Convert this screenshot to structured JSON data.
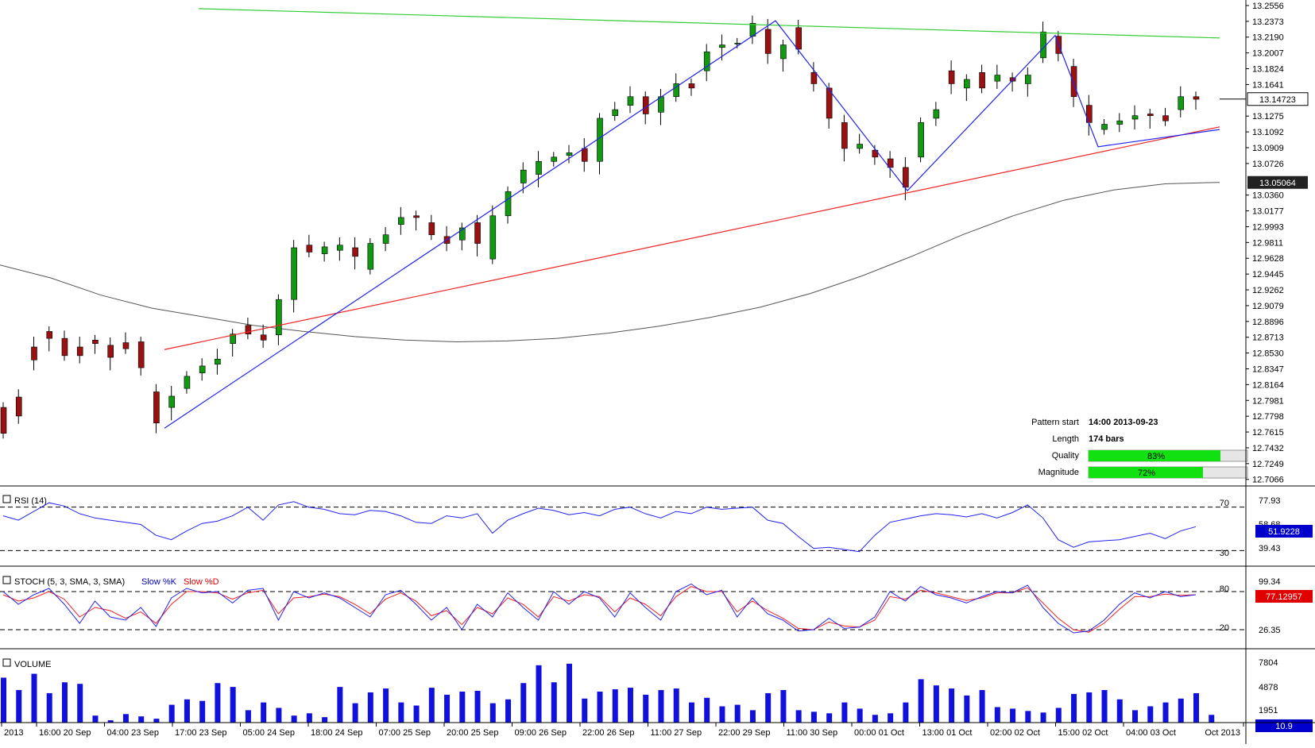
{
  "chart_data": {
    "type": "candlestick",
    "price_axis": {
      "ticks": [
        "13.2556",
        "13.2373",
        "13.2190",
        "13.2007",
        "13.1824",
        "13.1641",
        "13.1275",
        "13.1092",
        "13.0909",
        "13.0726",
        "13.0360",
        "13.0177",
        "12.9993",
        "12.9811",
        "12.9628",
        "12.9445",
        "12.9262",
        "12.9079",
        "12.8896",
        "12.8713",
        "12.8530",
        "12.8347",
        "12.8164",
        "12.7981",
        "12.7798",
        "12.7615",
        "12.7432",
        "12.7249",
        "12.7066"
      ],
      "range": [
        12.699,
        13.262
      ],
      "current_price_label": "13.14723",
      "ma_label": "13.05064"
    },
    "time_axis": {
      "labels": [
        "2013",
        "16:00 20 Sep",
        "04:00 23 Sep",
        "17:00 23 Sep",
        "05:00 24 Sep",
        "18:00 24 Sep",
        "07:00 25 Sep",
        "20:00 25 Sep",
        "09:00 26 Sep",
        "22:00 26 Sep",
        "11:00 27 Sep",
        "22:00 29 Sep",
        "11:00 30 Sep",
        "00:00 01 Oct",
        "13:00 01 Oct",
        "02:00 02 Oct",
        "15:00 02 Oct",
        "04:00 03 Oct",
        "Oct 2013"
      ]
    },
    "price_points": [
      [
        12.79,
        12.76
      ],
      [
        12.802,
        12.78
      ],
      [
        12.86,
        12.845
      ],
      [
        12.878,
        12.87
      ],
      [
        12.87,
        12.85
      ],
      [
        12.86,
        12.85
      ],
      [
        12.868,
        12.864
      ],
      [
        12.862,
        12.848
      ],
      [
        12.865,
        12.858
      ],
      [
        12.866,
        12.836
      ],
      [
        12.808,
        12.772
      ],
      [
        12.79,
        12.803
      ],
      [
        12.812,
        12.826
      ],
      [
        12.83,
        12.838
      ],
      [
        12.84,
        12.846
      ],
      [
        12.864,
        12.875
      ],
      [
        12.885,
        12.875
      ],
      [
        12.874,
        12.868
      ],
      [
        12.874,
        12.915
      ],
      [
        12.915,
        12.975
      ],
      [
        12.978,
        12.97
      ],
      [
        12.968,
        12.976
      ],
      [
        12.972,
        12.978
      ],
      [
        12.975,
        12.965
      ],
      [
        12.95,
        12.98
      ],
      [
        12.98,
        12.99
      ],
      [
        13.002,
        13.01
      ],
      [
        13.012,
        13.01
      ],
      [
        13.004,
        12.99
      ],
      [
        12.988,
        12.98
      ],
      [
        12.984,
        12.998
      ],
      [
        13.004,
        12.98
      ],
      [
        12.962,
        13.012
      ],
      [
        13.012,
        13.04
      ],
      [
        13.05,
        13.065
      ],
      [
        13.06,
        13.075
      ],
      [
        13.075,
        13.08
      ],
      [
        13.082,
        13.085
      ],
      [
        13.09,
        13.075
      ],
      [
        13.075,
        13.125
      ],
      [
        13.128,
        13.135
      ],
      [
        13.14,
        13.15
      ],
      [
        13.15,
        13.13
      ],
      [
        13.132,
        13.15
      ],
      [
        13.15,
        13.165
      ],
      [
        13.165,
        13.16
      ],
      [
        13.18,
        13.202
      ],
      [
        13.207,
        13.21
      ],
      [
        13.212,
        13.212
      ],
      [
        13.22,
        13.235
      ],
      [
        13.228,
        13.2
      ],
      [
        13.194,
        13.21
      ],
      [
        13.23,
        13.205
      ],
      [
        13.178,
        13.165
      ],
      [
        13.16,
        13.125
      ],
      [
        13.12,
        13.09
      ],
      [
        13.09,
        13.095
      ],
      [
        13.088,
        13.08
      ],
      [
        13.078,
        13.068
      ],
      [
        13.068,
        13.045
      ],
      [
        13.08,
        13.12
      ],
      [
        13.125,
        13.135
      ],
      [
        13.18,
        13.165
      ],
      [
        13.16,
        13.17
      ],
      [
        13.178,
        13.16
      ],
      [
        13.168,
        13.175
      ],
      [
        13.172,
        13.168
      ],
      [
        13.165,
        13.175
      ],
      [
        13.195,
        13.225
      ],
      [
        13.22,
        13.2
      ],
      [
        13.185,
        13.15
      ],
      [
        13.14,
        13.12
      ],
      [
        13.112,
        13.118
      ],
      [
        13.118,
        13.122
      ],
      [
        13.124,
        13.128
      ],
      [
        13.13,
        13.128
      ],
      [
        13.128,
        13.122
      ],
      [
        13.135,
        13.15
      ],
      [
        13.15,
        13.147
      ]
    ],
    "series": [
      {
        "values": [
          12.955,
          12.94,
          12.92,
          12.905,
          12.895,
          12.885,
          12.878,
          12.872,
          12.868,
          12.866,
          12.867,
          12.87,
          12.876,
          12.884,
          12.894,
          12.906,
          12.922,
          12.942,
          12.965,
          12.99,
          13.012,
          13.03,
          13.042,
          13.049,
          13.0506
        ]
      }
    ],
    "pattern_lines": {
      "resistance": [
        13.252,
        13.218
      ],
      "support": [
        12.857,
        13.115
      ]
    },
    "zigzag": [
      12.766,
      13.238,
      13.041,
      13.221,
      13.092,
      13.112
    ],
    "info": {
      "pattern_start_label": "Pattern start",
      "pattern_start_value": "14:00 2013-09-23",
      "length_label": "Length",
      "length_value": "174 bars",
      "quality_label": "Quality",
      "quality_value": "83%",
      "quality": 0.83,
      "magnitude_label": "Magnitude",
      "magnitude_value": "72%",
      "magnitude": 0.72
    },
    "rsi": {
      "title": "RSI (14)",
      "ticks": [
        "77.93",
        "58.68",
        "39.43"
      ],
      "levels": [
        "70",
        "30"
      ],
      "current_label": "51.9228",
      "values": [
        62,
        58,
        66,
        74,
        71,
        64,
        60,
        58,
        56,
        54,
        44,
        40,
        48,
        55,
        57,
        62,
        70,
        58,
        72,
        75,
        70,
        68,
        64,
        63,
        67,
        66,
        62,
        56,
        55,
        62,
        60,
        64,
        46,
        58,
        64,
        69,
        67,
        63,
        65,
        62,
        68,
        70,
        64,
        60,
        66,
        64,
        70,
        68,
        69,
        70,
        58,
        55,
        43,
        32,
        33,
        31,
        29,
        44,
        56,
        59,
        62,
        64,
        63,
        61,
        64,
        60,
        65,
        72,
        60,
        40,
        33,
        38,
        39,
        40,
        43,
        46,
        41,
        48,
        52
      ]
    },
    "stoch": {
      "title": "STOCH (5, 3, SMA, 3, SMA)",
      "k_label": "Slow %K",
      "d_label": "Slow %D",
      "ticks": [
        "99.34",
        "26.35"
      ],
      "levels": [
        "80",
        "20"
      ],
      "current_label": "77.12957",
      "k": [
        80,
        60,
        75,
        85,
        60,
        30,
        65,
        40,
        35,
        55,
        25,
        70,
        85,
        78,
        80,
        62,
        82,
        85,
        35,
        80,
        70,
        78,
        70,
        55,
        40,
        75,
        82,
        60,
        35,
        55,
        20,
        60,
        40,
        78,
        55,
        35,
        80,
        60,
        80,
        70,
        40,
        78,
        55,
        35,
        80,
        92,
        75,
        82,
        40,
        70,
        45,
        35,
        18,
        20,
        38,
        22,
        24,
        40,
        80,
        65,
        88,
        75,
        70,
        62,
        72,
        80,
        78,
        90,
        55,
        30,
        15,
        18,
        35,
        60,
        78,
        70,
        80,
        72,
        75
      ],
      "d": [
        75,
        65,
        70,
        80,
        68,
        40,
        55,
        50,
        38,
        48,
        30,
        60,
        80,
        80,
        78,
        68,
        78,
        82,
        45,
        70,
        72,
        76,
        72,
        60,
        45,
        68,
        78,
        65,
        42,
        50,
        28,
        55,
        45,
        70,
        60,
        40,
        72,
        65,
        75,
        72,
        48,
        70,
        60,
        42,
        72,
        88,
        80,
        80,
        48,
        65,
        50,
        38,
        22,
        20,
        32,
        26,
        24,
        35,
        72,
        68,
        82,
        78,
        72,
        66,
        70,
        78,
        78,
        86,
        62,
        38,
        20,
        16,
        30,
        52,
        72,
        72,
        76,
        74,
        75
      ]
    },
    "volume": {
      "title": "VOLUME",
      "ticks": [
        "7804",
        "4878",
        "1951"
      ],
      "current_label": "10.9",
      "values": [
        5800,
        4200,
        6300,
        3800,
        5200,
        5000,
        900,
        300,
        1100,
        800,
        500,
        2300,
        3000,
        2800,
        5100,
        4600,
        1600,
        2600,
        1900,
        900,
        1200,
        700,
        4600,
        2500,
        3900,
        4400,
        2600,
        2200,
        4500,
        3600,
        4000,
        4100,
        2500,
        3000,
        5100,
        7400,
        5200,
        7600,
        3100,
        4000,
        4300,
        4500,
        3600,
        4200,
        4400,
        2600,
        3200,
        2100,
        2300,
        1600,
        3800,
        4200,
        1600,
        1400,
        1200,
        2600,
        1800,
        1000,
        1200,
        2600,
        5600,
        4800,
        4400,
        3500,
        4200,
        2000,
        1800,
        1500,
        1300,
        1900,
        3700,
        3900,
        4200,
        3000,
        1600,
        2100,
        2600,
        3100,
        3800,
        1000
      ]
    }
  }
}
